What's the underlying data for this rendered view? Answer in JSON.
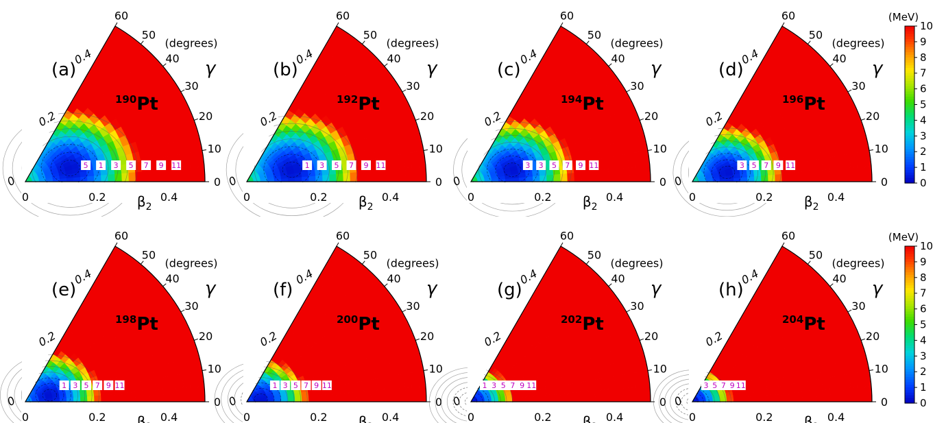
{
  "chart_data": {
    "type": "heatmap",
    "description_units": {
      "radial_axis_label": "β",
      "radial_axis_subscript": "2",
      "angular_axis_label": "γ",
      "angular_axis_unit": "(degrees)",
      "colorbar_unit": "(MeV)"
    },
    "beta_ticks": [
      "0",
      "0.2",
      "0.4"
    ],
    "beta_ticks_edge": [
      "0",
      "0.2",
      "0.4"
    ],
    "gamma_ticks": [
      "0",
      "10",
      "20",
      "30",
      "40",
      "50",
      "60"
    ],
    "beta_max": 0.5,
    "gamma_range": [
      0,
      60
    ],
    "colorbar": {
      "min": 0,
      "max": 10,
      "ticks": [
        "0",
        "1",
        "2",
        "3",
        "4",
        "5",
        "6",
        "7",
        "8",
        "9",
        "10"
      ]
    },
    "contour_labels": [
      "1",
      "3",
      "5",
      "7",
      "9",
      "11"
    ],
    "panels": [
      {
        "label": "(a)",
        "mass": "190",
        "element": "Pt",
        "min_beta": 0.13,
        "min_gamma": 17,
        "scale": 1.0,
        "labels": [
          "5",
          "1",
          "3",
          "5",
          "7",
          "9",
          "11"
        ]
      },
      {
        "label": "(b)",
        "mass": "192",
        "element": "Pt",
        "min_beta": 0.13,
        "min_gamma": 15,
        "scale": 1.05,
        "labels": [
          "1",
          "3",
          "5",
          "7",
          "9",
          "11"
        ]
      },
      {
        "label": "(c)",
        "mass": "194",
        "element": "Pt",
        "min_beta": 0.12,
        "min_gamma": 16,
        "scale": 1.3,
        "labels": [
          "3",
          "3",
          "5",
          "7",
          "9",
          "11"
        ]
      },
      {
        "label": "(d)",
        "mass": "196",
        "element": "Pt",
        "min_beta": 0.1,
        "min_gamma": 15,
        "scale": 1.55,
        "labels": [
          "3",
          "5",
          "7",
          "9",
          "11"
        ]
      },
      {
        "label": "(e)",
        "mass": "198",
        "element": "Pt",
        "min_beta": 0.07,
        "min_gamma": 15,
        "scale": 1.85,
        "labels": [
          "1",
          "3",
          "5",
          "7",
          "9",
          "11"
        ]
      },
      {
        "label": "(f)",
        "mass": "200",
        "element": "Pt",
        "min_beta": 0.04,
        "min_gamma": 10,
        "scale": 2.1,
        "labels": [
          "1",
          "3",
          "5",
          "7",
          "9",
          "11"
        ]
      },
      {
        "label": "(g)",
        "mass": "202",
        "element": "Pt",
        "min_beta": 0.0,
        "min_gamma": 0,
        "scale": 2.6,
        "labels": [
          "1",
          "3",
          "5",
          "7",
          "9",
          "11"
        ]
      },
      {
        "label": "(h)",
        "mass": "204",
        "element": "Pt",
        "min_beta": 0.0,
        "min_gamma": 0,
        "scale": 3.0,
        "labels": [
          "3",
          "5",
          "7",
          "9",
          "11"
        ]
      }
    ]
  }
}
